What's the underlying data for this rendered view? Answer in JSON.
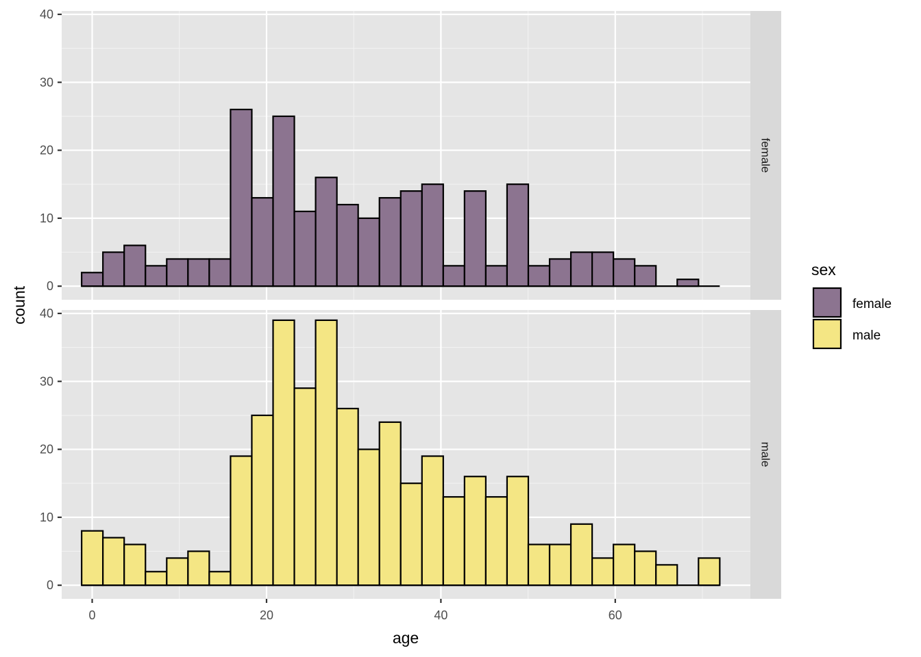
{
  "chart_data": {
    "type": "bar",
    "subtype": "faceted-histogram",
    "xlabel": "age",
    "ylabel": "count",
    "xlim": [
      -3.5,
      75.5
    ],
    "ylim": [
      -2,
      40.5
    ],
    "x_ticks": [
      0,
      20,
      40,
      60
    ],
    "y_ticks": [
      0,
      10,
      20,
      30,
      40
    ],
    "grid": true,
    "bin_width": 2.44,
    "bin_start": -1.21,
    "legend": {
      "title": "sex",
      "position": "right",
      "entries": [
        {
          "label": "female",
          "color": "#8c7490"
        },
        {
          "label": "male",
          "color": "#f4e684"
        }
      ]
    },
    "series": [
      {
        "name": "female",
        "strip_label": "female",
        "fill": "#8c7490",
        "values": [
          2,
          5,
          6,
          3,
          4,
          4,
          4,
          26,
          13,
          25,
          11,
          16,
          12,
          10,
          13,
          14,
          15,
          3,
          14,
          3,
          15,
          3,
          4,
          5,
          5,
          4,
          3,
          0,
          1,
          0
        ]
      },
      {
        "name": "male",
        "strip_label": "male",
        "fill": "#f4e684",
        "values": [
          8,
          7,
          6,
          2,
          4,
          5,
          2,
          19,
          25,
          39,
          29,
          39,
          26,
          20,
          24,
          15,
          19,
          13,
          16,
          13,
          16,
          6,
          6,
          9,
          4,
          6,
          5,
          3,
          0,
          4
        ]
      }
    ]
  }
}
